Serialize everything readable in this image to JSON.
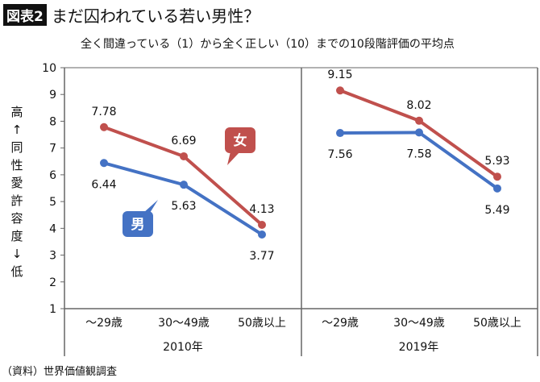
{
  "header": {
    "badge": "図表2",
    "title": "まだ囚われている若い男性？"
  },
  "chart_data": {
    "type": "line",
    "title": "全く間違っている（1）から全く正しい（10）までの10段階評価の平均点",
    "ylabel": "高 ↑ 同性愛許容度 ↓ 低",
    "ylim": [
      1,
      10
    ],
    "yticks": [
      "1",
      "2",
      "3",
      "4",
      "5",
      "6",
      "7",
      "8",
      "9",
      "10"
    ],
    "groups": [
      {
        "label": "2010年",
        "categories": [
          "〜29歳",
          "30〜49歳",
          "50歳以上"
        ],
        "series": [
          {
            "name": "女",
            "color": "#c0504d",
            "values": [
              7.78,
              6.69,
              4.13
            ],
            "labels": [
              "7.78",
              "6.69",
              "4.13"
            ]
          },
          {
            "name": "男",
            "color": "#4472c4",
            "values": [
              6.44,
              5.63,
              3.77
            ],
            "labels": [
              "6.44",
              "5.63",
              "3.77"
            ]
          }
        ]
      },
      {
        "label": "2019年",
        "categories": [
          "〜29歳",
          "30〜49歳",
          "50歳以上"
        ],
        "series": [
          {
            "name": "女",
            "color": "#c0504d",
            "values": [
              9.15,
              8.02,
              5.93
            ],
            "labels": [
              "9.15",
              "8.02",
              "5.93"
            ]
          },
          {
            "name": "男",
            "color": "#4472c4",
            "values": [
              7.56,
              7.58,
              5.49
            ],
            "labels": [
              "7.56",
              "7.58",
              "5.49"
            ]
          }
        ]
      }
    ],
    "legend": "callouts"
  },
  "source": "（資料）世界価値観調査"
}
